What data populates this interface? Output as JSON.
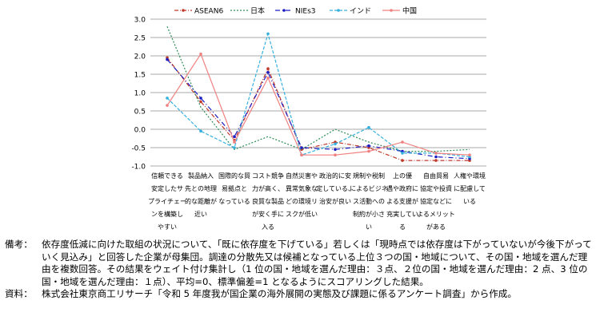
{
  "chart_data": {
    "type": "line",
    "title": "",
    "xlabel": "",
    "ylabel": "",
    "ylim": [
      -1.0,
      3.0
    ],
    "yticks": [
      "3.0",
      "2.5",
      "2.0",
      "1.5",
      "1.0",
      "0.5",
      "0.0",
      "-0.5",
      "-1.0"
    ],
    "legend_position": "top",
    "categories": [
      [
        "信頼できる",
        "安定したサ",
        "プライチェー",
        "ンを構築し",
        "やすい"
      ],
      [
        "製品納入",
        "先との地理",
        "的な距離が",
        "近い"
      ],
      [
        "国際的な貿",
        "易拠点と",
        "なっている"
      ],
      [
        "コスト競争",
        "力が高く、",
        "良質な製品",
        "が安く手に",
        "入る"
      ],
      [
        "自然災害や",
        "異常気象な",
        "どの環境リ",
        "スクが低い"
      ],
      [
        "政治的に安",
        "定している、",
        "治安が良い"
      ],
      [
        "規制や税制",
        "によるビジネ",
        "ス活動への",
        "制約が小さ",
        "い"
      ],
      [
        "上の優",
        "遇や政府に",
        "よる支援が",
        "充実してい",
        "る"
      ],
      [
        "自由貿易",
        "協定や投資",
        "協定などに",
        "よるメリット",
        "がある"
      ],
      [
        "人権や環境",
        "に配慮して",
        "いる"
      ]
    ],
    "series": [
      {
        "name": "ASEAN6",
        "color": "#c0392b",
        "dash": "5,2,1,2",
        "marker": "dot",
        "values": [
          1.95,
          0.75,
          -0.3,
          1.65,
          -0.55,
          -0.35,
          -0.5,
          -0.85,
          -0.85,
          -0.85
        ]
      },
      {
        "name": "日本",
        "color": "#2e8b57",
        "dash": "2,2",
        "marker": "none",
        "values": [
          2.8,
          0.6,
          -0.55,
          -0.2,
          -0.55,
          0.0,
          -0.35,
          -0.6,
          -0.6,
          -0.55
        ]
      },
      {
        "name": "NIEs3",
        "color": "#1c1cc4",
        "dash": "6,3,1,3",
        "marker": "dot",
        "values": [
          1.9,
          0.85,
          -0.2,
          1.55,
          -0.5,
          -0.55,
          -0.45,
          -0.6,
          -0.75,
          -0.8
        ]
      },
      {
        "name": "インド",
        "color": "#35b0de",
        "dash": "4,2",
        "marker": "dot",
        "values": [
          0.85,
          -0.05,
          -0.5,
          2.6,
          -0.7,
          -0.4,
          0.05,
          -0.65,
          -0.65,
          -0.75
        ]
      },
      {
        "name": "中国",
        "color": "#f08080",
        "dash": "",
        "marker": "dot",
        "values": [
          0.65,
          2.05,
          -0.35,
          1.4,
          -0.7,
          -0.7,
          -0.6,
          -0.35,
          -0.65,
          -0.7
        ]
      }
    ]
  },
  "notes": {
    "remarks_label": "備考：",
    "remarks_text": "依存度低減に向けた取組の状況について、「既に依存度を下げている」若しくは「現時点では依存度は下がっていないが今後下がっていく見込み」と回答した企業が母集団。調達の分散先又は候補となっている上位３つの国・地域について、その国・地域を選んだ理由を複数回答。その結果をウェイト付け集計し（1 位の国・地域を選んだ理由：３点、２位の国・地域を選んだ理由：2 点、3 位の国・地域を選んだ理由：１点）、平均=0、標準偏差=1 となるようにスコアリングした結果。",
    "source_label": "資料：",
    "source_text": "株式会社東京商工リサーチ「令和 5 年度我が国企業の海外展開の実態及び課題に係るアンケート調査」から作成。"
  }
}
